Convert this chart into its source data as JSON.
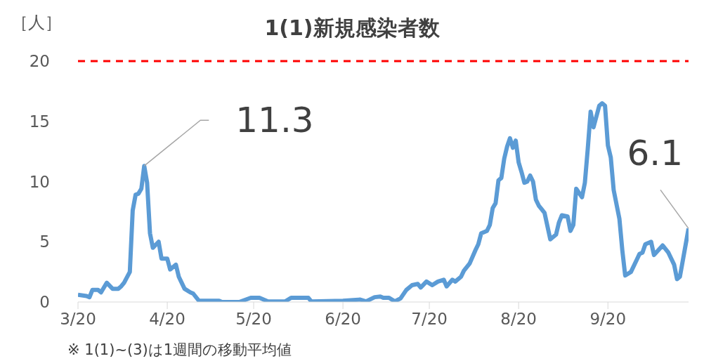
{
  "chart_data": {
    "type": "line",
    "title": "1(1)新規感染者数",
    "ylabel": "［人］",
    "x": [
      "--03-20",
      "--03-23",
      "--03-24",
      "--03-25",
      "--03-27",
      "--03-28",
      "--03-30",
      "--04-01",
      "--04-03",
      "--04-04",
      "--04-05",
      "--04-07",
      "--04-08",
      "--04-09",
      "--04-10",
      "--04-11",
      "--04-12",
      "--04-13",
      "--04-14",
      "--04-15",
      "--04-17",
      "--04-18",
      "--04-20",
      "--04-21",
      "--04-23",
      "--04-24",
      "--04-26",
      "--04-28",
      "--04-29",
      "--05-01",
      "--05-08",
      "--05-09",
      "--05-15",
      "--05-19",
      "--05-22",
      "--05-25",
      "--05-31",
      "--06-02",
      "--06-08",
      "--06-09",
      "--06-20",
      "--06-26",
      "--06-28",
      "--07-01",
      "--07-03",
      "--07-04",
      "--07-06",
      "--07-08",
      "--07-10",
      "--07-12",
      "--07-14",
      "--07-16",
      "--07-17",
      "--07-19",
      "--07-21",
      "--07-23",
      "--07-25",
      "--07-26",
      "--07-28",
      "--07-29",
      "--07-31",
      "--08-01",
      "--08-03",
      "--08-05",
      "--08-06",
      "--08-07",
      "--08-09",
      "--08-10",
      "--08-11",
      "--08-12",
      "--08-13",
      "--08-14",
      "--08-15",
      "--08-16",
      "--08-17",
      "--08-18",
      "--08-19",
      "--08-20",
      "--08-21",
      "--08-22",
      "--08-23",
      "--08-24",
      "--08-25",
      "--08-26",
      "--08-27",
      "--08-28",
      "--08-29",
      "--08-31",
      "--09-02",
      "--09-03",
      "--09-04",
      "--09-06",
      "--09-07",
      "--09-08",
      "--09-09",
      "--09-11",
      "--09-12",
      "--09-13",
      "--09-14",
      "--09-15",
      "--09-17",
      "--09-18",
      "--09-19",
      "--09-20",
      "--09-21",
      "--09-22",
      "--09-24",
      "--09-25",
      "--09-26",
      "--09-28",
      "--09-30",
      "--10-01",
      "--10-02",
      "--10-03",
      "--10-05",
      "--10-06",
      "--10-09",
      "--10-11",
      "--10-13",
      "--10-14",
      "--10-15",
      "--10-18"
    ],
    "series": [
      {
        "color": "#5b9bd5",
        "values": [
          0.6,
          0.5,
          0.4,
          1.0,
          1.0,
          0.8,
          1.6,
          1.1,
          1.1,
          1.3,
          1.6,
          2.5,
          7.6,
          8.9,
          9.0,
          9.4,
          11.3,
          9.9,
          5.7,
          4.5,
          5.0,
          3.6,
          3.6,
          2.7,
          3.1,
          2.1,
          1.1,
          0.8,
          0.7,
          0.1,
          0.1,
          0,
          0,
          0.35,
          0.35,
          0.05,
          0.05,
          0.35,
          0.35,
          0.05,
          0.1,
          0.2,
          0.05,
          0.4,
          0.45,
          0.35,
          0.35,
          0.05,
          0.3,
          1.0,
          1.4,
          1.5,
          1.2,
          1.7,
          1.4,
          1.7,
          1.85,
          1.3,
          1.85,
          1.7,
          2.1,
          2.6,
          3.2,
          4.3,
          4.8,
          5.7,
          5.9,
          6.4,
          7.8,
          8.2,
          10.1,
          10.3,
          11.9,
          12.9,
          13.6,
          12.8,
          13.4,
          11.6,
          10.8,
          9.9,
          10.0,
          10.5,
          10.0,
          8.5,
          8.0,
          7.7,
          7.4,
          5.2,
          5.6,
          6.6,
          7.2,
          7.1,
          5.9,
          6.4,
          9.4,
          8.7,
          9.9,
          12.7,
          15.8,
          14.5,
          16.3,
          16.5,
          16.3,
          13.0,
          12.0,
          9.3,
          6.9,
          4.3,
          2.2,
          2.5,
          3.5,
          4.0,
          4.1,
          4.8,
          5.0,
          3.9,
          4.7,
          4.1,
          3.1,
          1.9,
          2.1,
          6.1
        ]
      }
    ],
    "xlim": [
      "--03-20",
      "--10-18"
    ],
    "xticks": [
      {
        "value": "--03-20",
        "label": "3/20"
      },
      {
        "value": "--04-20",
        "label": "4/20"
      },
      {
        "value": "--05-20",
        "label": "5/20"
      },
      {
        "value": "--06-20",
        "label": "6/20"
      },
      {
        "value": "--07-20",
        "label": "7/20"
      },
      {
        "value": "--08-20",
        "label": "8/20"
      },
      {
        "value": "--09-20",
        "label": "9/20"
      }
    ],
    "ylim": [
      0,
      20
    ],
    "yticks": [
      0,
      5,
      10,
      15,
      20
    ],
    "ref_lines": [
      {
        "axis": "y",
        "value": 20,
        "color": "#ff0000",
        "line_style": "dashed"
      }
    ],
    "annotations": [
      {
        "text": "11.3",
        "x": "--04-12",
        "y": 11.3
      },
      {
        "text": "6.1",
        "x": "--10-18",
        "y": 6.1
      },
      "※ 1(1)~(3)は1週間の移動平均値"
    ],
    "grid": false,
    "legend": false,
    "marker": "none",
    "line_style": "solid"
  }
}
